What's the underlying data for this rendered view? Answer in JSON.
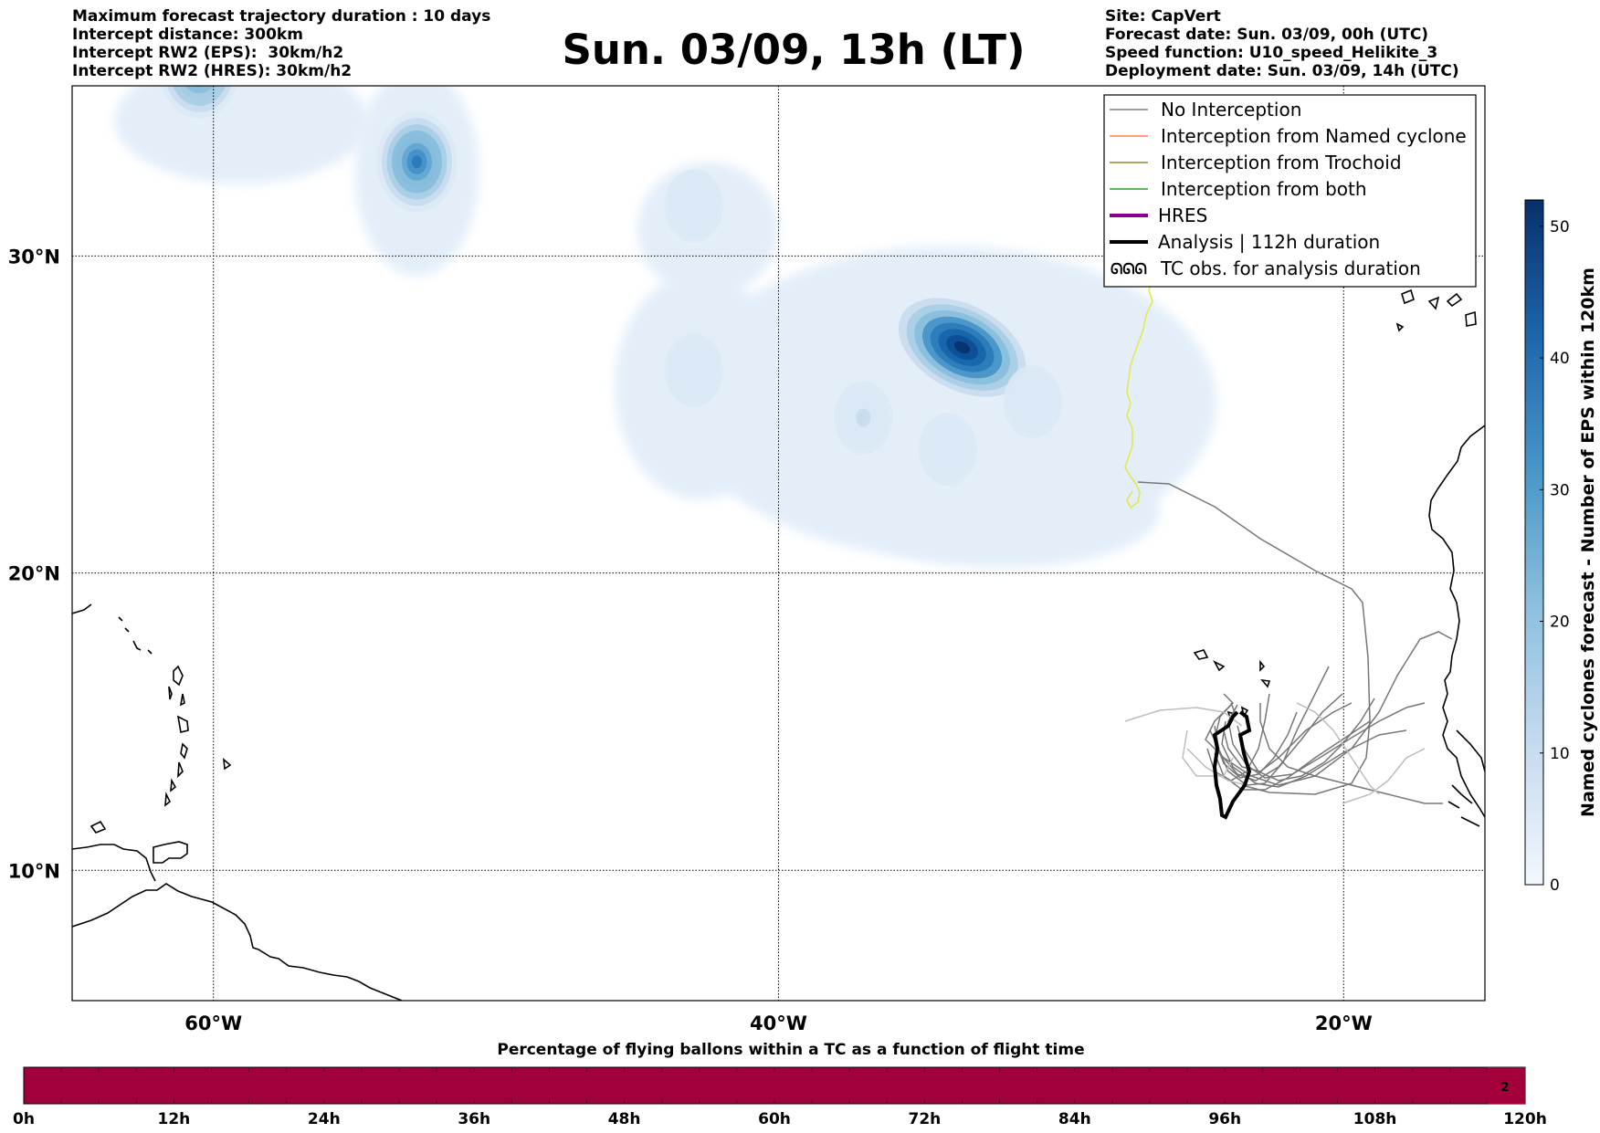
{
  "header_left": [
    "Maximum forecast trajectory duration : 10 days",
    "Intercept distance: 300km",
    "Intercept RW2 (EPS):  30km/h2",
    "Intercept RW2 (HRES): 30km/h2"
  ],
  "title": "Sun. 03/09, 13h (LT)",
  "header_right": [
    "Site: CapVert",
    "Forecast date: Sun. 03/09, 00h (UTC)",
    "Speed function: U10_speed_Helikite_3",
    "Deployment date: Sun. 03/09, 14h (UTC)"
  ],
  "map": {
    "lon_range": [
      -65,
      -15
    ],
    "lat_range": [
      5.5,
      35
    ],
    "lat_ticks": [
      {
        "value": 30,
        "label": "30°N"
      },
      {
        "value": 20,
        "label": "20°N"
      },
      {
        "value": 10,
        "label": "10°N"
      }
    ],
    "lon_ticks": [
      {
        "value": -60,
        "label": "60°W"
      },
      {
        "value": -40,
        "label": "40°W"
      },
      {
        "value": -20,
        "label": "20°W"
      }
    ],
    "density_blobs": [
      {
        "lon": -60.5,
        "lat": 35.5,
        "peak": 30
      },
      {
        "lon": -52.8,
        "lat": 32.8,
        "peak": 32
      },
      {
        "lon": -33.5,
        "lat": 27.2,
        "peak": 52
      },
      {
        "lon": -37.0,
        "lat": 25.0,
        "peak": 6
      },
      {
        "lon": -34.0,
        "lat": 24.0,
        "peak": 5
      },
      {
        "lon": -31.0,
        "lat": 25.5,
        "peak": 5
      },
      {
        "lon": -43.0,
        "lat": 31.5,
        "peak": 3
      },
      {
        "lon": -43.0,
        "lat": 26.5,
        "peak": 3
      }
    ],
    "light_regions": [
      {
        "lon": -59.0,
        "lat": 34.0,
        "rx": 4.5,
        "ry": 1.8
      },
      {
        "lon": -52.8,
        "lat": 32.5,
        "rx": 2.2,
        "ry": 3.0
      },
      {
        "lon": -42.5,
        "lat": 30.8,
        "rx": 2.5,
        "ry": 2.0
      },
      {
        "lon": -42.8,
        "lat": 26.0,
        "rx": 3.0,
        "ry": 3.5
      },
      {
        "lon": -34.0,
        "lat": 25.5,
        "rx": 9.5,
        "ry": 4.8
      },
      {
        "lon": -32.0,
        "lat": 22.0,
        "rx": 5.5,
        "ry": 1.8
      }
    ]
  },
  "colorbar": {
    "label": "Named cyclones forecast - Number of EPS within 120km",
    "min": 0,
    "max": 52,
    "ticks": [
      0,
      10,
      20,
      30,
      40,
      50
    ],
    "color_low": "#e3eef9",
    "color_high": "#08306b"
  },
  "legend": {
    "items": [
      {
        "label": "No Interception",
        "color": "#808080",
        "style": "thin"
      },
      {
        "label": "Interception from Named cyclone",
        "color": "#ff7f50",
        "style": "thin"
      },
      {
        "label": "Interception from Trochoid",
        "color": "#8b8b2a",
        "style": "thin"
      },
      {
        "label": "Interception from both",
        "color": "#2ca02c",
        "style": "thin"
      },
      {
        "label": "HRES",
        "color": "#8b008b",
        "style": "thick"
      },
      {
        "label": "Analysis | 112h duration",
        "color": "#000000",
        "style": "thick"
      },
      {
        "label": "TC obs. for analysis duration",
        "color": "#000000",
        "style": "symbol",
        "symbol": "ᘏᘏᘏ"
      }
    ]
  },
  "timeline": {
    "title": "Percentage of flying ballons within a TC as a function of flight time",
    "ticks": [
      "0h",
      "12h",
      "24h",
      "36h",
      "48h",
      "60h",
      "72h",
      "84h",
      "96h",
      "108h",
      "120h"
    ],
    "max_hours": 120,
    "bar_color": "#a0003c",
    "last_cell_label": "2",
    "last_cell_color": "#a3003c"
  },
  "colors": {
    "trajectory_gray": "#777777",
    "trajectory_light": "#bdbdbd",
    "trochoid_yellow": "#e6e650",
    "coast": "#000000"
  }
}
